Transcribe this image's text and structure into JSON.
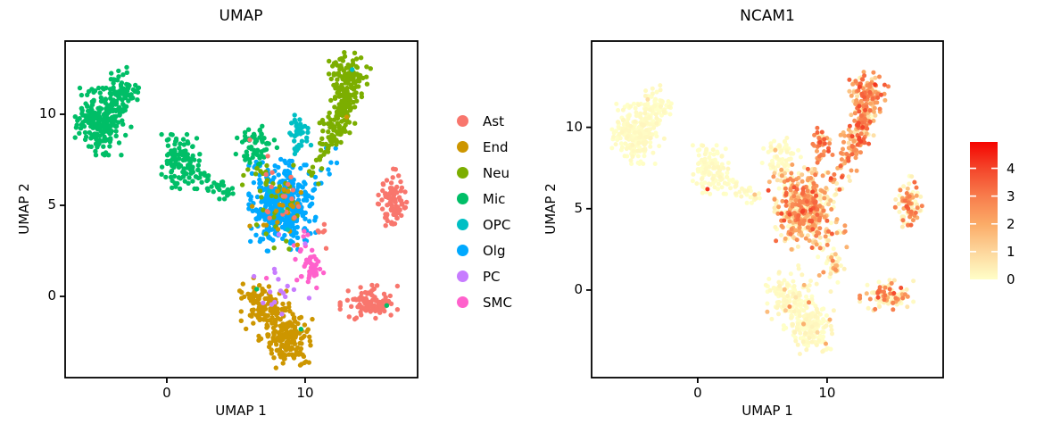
{
  "figure": {
    "background": "#ffffff",
    "panels": [
      {
        "title": "UMAP",
        "xlabel": "UMAP 1",
        "ylabel": "UMAP 2",
        "x_ticks": [
          0,
          10
        ],
        "y_ticks": [
          0,
          5,
          10
        ],
        "x_range": [
          -7.35,
          18.13
        ],
        "y_range": [
          -4.46,
          14.02
        ]
      },
      {
        "title": "NCAM1",
        "xlabel": "UMAP 1",
        "ylabel": "UMAP 2",
        "x_ticks": [
          0,
          10
        ],
        "y_ticks": [
          0,
          5,
          10
        ],
        "x_range": [
          -8.2,
          18.97
        ],
        "y_range": [
          -5.38,
          15.3
        ]
      }
    ],
    "legend": {
      "items": [
        {
          "label": "Ast",
          "color": "#F8766D"
        },
        {
          "label": "End",
          "color": "#CD9600"
        },
        {
          "label": "Neu",
          "color": "#7CAE00"
        },
        {
          "label": "Mic",
          "color": "#00BE67"
        },
        {
          "label": "OPC",
          "color": "#00BFC4"
        },
        {
          "label": "Olg",
          "color": "#00A9FF"
        },
        {
          "label": "PC",
          "color": "#C77CFF"
        },
        {
          "label": "SMC",
          "color": "#FF61CC"
        }
      ]
    },
    "colorbar": {
      "vmin": 0,
      "vmax": 4.95,
      "ticks": [
        0,
        1,
        2,
        3,
        4
      ]
    }
  },
  "chart_data": {
    "type": "scatter",
    "title_left": "UMAP",
    "title_right": "NCAM1",
    "description": "Two-panel single-cell UMAP embedding. Left: cells colored by cell-type cluster (8 types). Right: same embedding colored by NCAM1 expression (0 to ~4.6, YlOrRd-style colormap). Clusters are summarized as generative blobs/segments in data coordinates.",
    "legend_position": "center-between-panels",
    "grid": false,
    "palette": {
      "Ast": "#F8766D",
      "End": "#CD9600",
      "Neu": "#7CAE00",
      "Mic": "#00BE67",
      "OPC": "#00BFC4",
      "Olg": "#00A9FF",
      "PC": "#C77CFF",
      "SMC": "#FF61CC"
    },
    "colormap_stops": [
      [
        0.0,
        "#FFFFC8"
      ],
      [
        1.0,
        "#FDD69C"
      ],
      [
        2.0,
        "#FBAB67"
      ],
      [
        3.0,
        "#F87C4C"
      ],
      [
        4.0,
        "#F4452A"
      ],
      [
        4.95,
        "#F50400"
      ]
    ],
    "expression_models": {
      "Mic": {
        "p_high": 0.01,
        "high": [
          1.0,
          0.3
        ],
        "low": [
          0.05,
          0.08
        ]
      },
      "End": {
        "p_high": 0.03,
        "high": [
          1.5,
          0.5
        ],
        "low": [
          0.08,
          0.1
        ]
      },
      "Neu": {
        "p_high": 0.85,
        "high": [
          2.5,
          0.75
        ],
        "low": [
          0.4,
          0.3
        ]
      },
      "OPC": {
        "p_high": 0.9,
        "high": [
          2.9,
          0.6
        ],
        "low": [
          0.5,
          0.4
        ]
      },
      "Olg": {
        "p_high": 0.55,
        "high": [
          2.2,
          0.8
        ],
        "low": [
          0.3,
          0.3
        ]
      },
      "Ast": {
        "p_high": 0.45,
        "high": [
          2.6,
          0.55
        ],
        "low": [
          0.2,
          0.2
        ]
      },
      "PC": {
        "p_high": 0.2,
        "high": [
          1.2,
          0.5
        ],
        "low": [
          0.15,
          0.15
        ]
      },
      "SMC": {
        "p_high": 0.25,
        "high": [
          1.8,
          0.6
        ],
        "low": [
          0.2,
          0.2
        ]
      }
    },
    "clusters": [
      {
        "cell_type": "Olg",
        "shape": "blob",
        "n": 420,
        "cx": 8.35,
        "cy": 5.0,
        "sx": 1.05,
        "sy": 1.1
      },
      {
        "cell_type": "Olg",
        "shape": "line",
        "n": 9,
        "x1": 11.2,
        "y1": 6.4,
        "x2": 12.3,
        "y2": 8.2,
        "jx": 0.25,
        "jy": 0.3
      },
      {
        "cell_type": "End",
        "shape": "blob",
        "n": 170,
        "cx": 8.6,
        "cy": -2.2,
        "sx": 0.85,
        "sy": 0.75
      },
      {
        "cell_type": "End",
        "shape": "blob",
        "n": 80,
        "cx": 7.1,
        "cy": -0.6,
        "sx": 0.75,
        "sy": 0.65
      },
      {
        "cell_type": "End",
        "shape": "blob",
        "n": 20,
        "cx": 6.3,
        "cy": 0.1,
        "sx": 0.45,
        "sy": 0.4
      },
      {
        "cell_type": "Mic",
        "shape": "blob",
        "n": 200,
        "cx": -4.9,
        "cy": 9.6,
        "sx": 0.75,
        "sy": 0.8
      },
      {
        "cell_type": "Mic",
        "shape": "blob",
        "n": 80,
        "cx": -3.3,
        "cy": 11.2,
        "sx": 0.55,
        "sy": 0.6
      },
      {
        "cell_type": "Mic",
        "shape": "blob",
        "n": 25,
        "cx": -3.7,
        "cy": 10.0,
        "sx": 0.6,
        "sy": 0.5
      },
      {
        "cell_type": "Mic",
        "shape": "blob",
        "n": 110,
        "cx": 1.0,
        "cy": 7.4,
        "sx": 0.6,
        "sy": 0.65
      },
      {
        "cell_type": "Mic",
        "shape": "line",
        "n": 40,
        "x1": 1.8,
        "y1": 6.9,
        "x2": 4.5,
        "y2": 5.7,
        "jx": 0.3,
        "jy": 0.25
      },
      {
        "cell_type": "Mic",
        "shape": "blob",
        "n": 55,
        "cx": 6.3,
        "cy": 8.2,
        "sx": 0.75,
        "sy": 0.5
      },
      {
        "cell_type": "Neu",
        "shape": "line",
        "n": 170,
        "x1": 11.9,
        "y1": 8.6,
        "x2": 13.6,
        "y2": 12.2,
        "jx": 0.5,
        "jy": 0.45
      },
      {
        "cell_type": "Neu",
        "shape": "blob",
        "n": 70,
        "cx": 13.1,
        "cy": 12.4,
        "sx": 0.6,
        "sy": 0.45
      },
      {
        "cell_type": "Neu",
        "shape": "line",
        "n": 22,
        "x1": 10.4,
        "y1": 6.4,
        "x2": 11.8,
        "y2": 8.4,
        "jx": 0.3,
        "jy": 0.3
      },
      {
        "cell_type": "OPC",
        "shape": "blob",
        "n": 32,
        "cx": 9.6,
        "cy": 9.0,
        "sx": 0.4,
        "sy": 0.5
      },
      {
        "cell_type": "OPC",
        "shape": "blob",
        "n": 6,
        "cx": 9.35,
        "cy": 8.1,
        "sx": 0.25,
        "sy": 0.25
      },
      {
        "cell_type": "Ast",
        "shape": "blob",
        "n": 85,
        "cx": 16.3,
        "cy": 5.2,
        "sx": 0.45,
        "sy": 0.8
      },
      {
        "cell_type": "Ast",
        "shape": "blob",
        "n": 95,
        "cx": 14.6,
        "cy": -0.35,
        "sx": 0.9,
        "sy": 0.42
      },
      {
        "cell_type": "SMC",
        "shape": "blob",
        "n": 40,
        "cx": 10.55,
        "cy": 1.5,
        "sx": 0.4,
        "sy": 0.45
      },
      {
        "cell_type": "SMC",
        "shape": "line",
        "n": 8,
        "x1": 9.3,
        "y1": 2.4,
        "x2": 10.2,
        "y2": 3.6,
        "jx": 0.3,
        "jy": 0.25
      },
      {
        "cell_type": "Neu",
        "shape": "blob",
        "n": 30,
        "cx": 8.0,
        "cy": 4.9,
        "sx": 0.9,
        "sy": 1.0
      },
      {
        "cell_type": "Neu",
        "shape": "line",
        "n": 10,
        "x1": 5.7,
        "y1": 7.5,
        "x2": 7.0,
        "y2": 6.0,
        "jx": 0.4,
        "jy": 0.4
      },
      {
        "cell_type": "End",
        "shape": "blob",
        "n": 20,
        "cx": 8.3,
        "cy": 4.9,
        "sx": 1.0,
        "sy": 0.9
      },
      {
        "cell_type": "Ast",
        "shape": "blob",
        "n": 16,
        "cx": 8.4,
        "cy": 5.4,
        "sx": 1.1,
        "sy": 1.0
      },
      {
        "cell_type": "Ast",
        "shape": "line",
        "n": 6,
        "x1": 10.8,
        "y1": 4.3,
        "x2": 11.6,
        "y2": 2.9,
        "jx": 0.25,
        "jy": 0.3
      },
      {
        "cell_type": "PC",
        "shape": "blob",
        "n": 14,
        "cx": 8.0,
        "cy": 0.3,
        "sx": 1.0,
        "sy": 0.7
      },
      {
        "cell_type": "OPC",
        "shape": "blob",
        "n": 3,
        "cx": 8.4,
        "cy": 4.4,
        "sx": 0.8,
        "sy": 0.8
      }
    ],
    "extra_points": [
      {
        "cell_type": "Mic",
        "x": 6.5,
        "y": 0.4
      },
      {
        "cell_type": "Mic",
        "x": 9.7,
        "y": -1.8
      },
      {
        "cell_type": "Mic",
        "x": 15.9,
        "y": -0.5
      },
      {
        "cell_type": "Mic",
        "x": 0.76,
        "y": 6.2,
        "expr": 4.2
      },
      {
        "cell_type": "OPC",
        "x": 13.4,
        "y": 12.45
      },
      {
        "cell_type": "End",
        "x": 13.0,
        "y": 9.85
      },
      {
        "cell_type": "End",
        "x": 9.9,
        "y": -3.3,
        "expr": 2.0
      },
      {
        "cell_type": "End",
        "x": 5.4,
        "y": -0.1
      },
      {
        "cell_type": "Ast",
        "x": 6.0,
        "y": 8.6,
        "expr": 1.6
      },
      {
        "cell_type": "Ast",
        "x": 7.3,
        "y": 7.7,
        "expr": 2.2
      },
      {
        "cell_type": "PC",
        "x": 8.1,
        "y": 3.4
      },
      {
        "cell_type": "PC",
        "x": 10.0,
        "y": 2.9
      },
      {
        "cell_type": "PC",
        "x": 6.3,
        "y": 1.1
      },
      {
        "cell_type": "SMC",
        "x": 7.2,
        "y": 1.0
      },
      {
        "cell_type": "SMC",
        "x": 9.4,
        "y": 0.9
      }
    ]
  }
}
